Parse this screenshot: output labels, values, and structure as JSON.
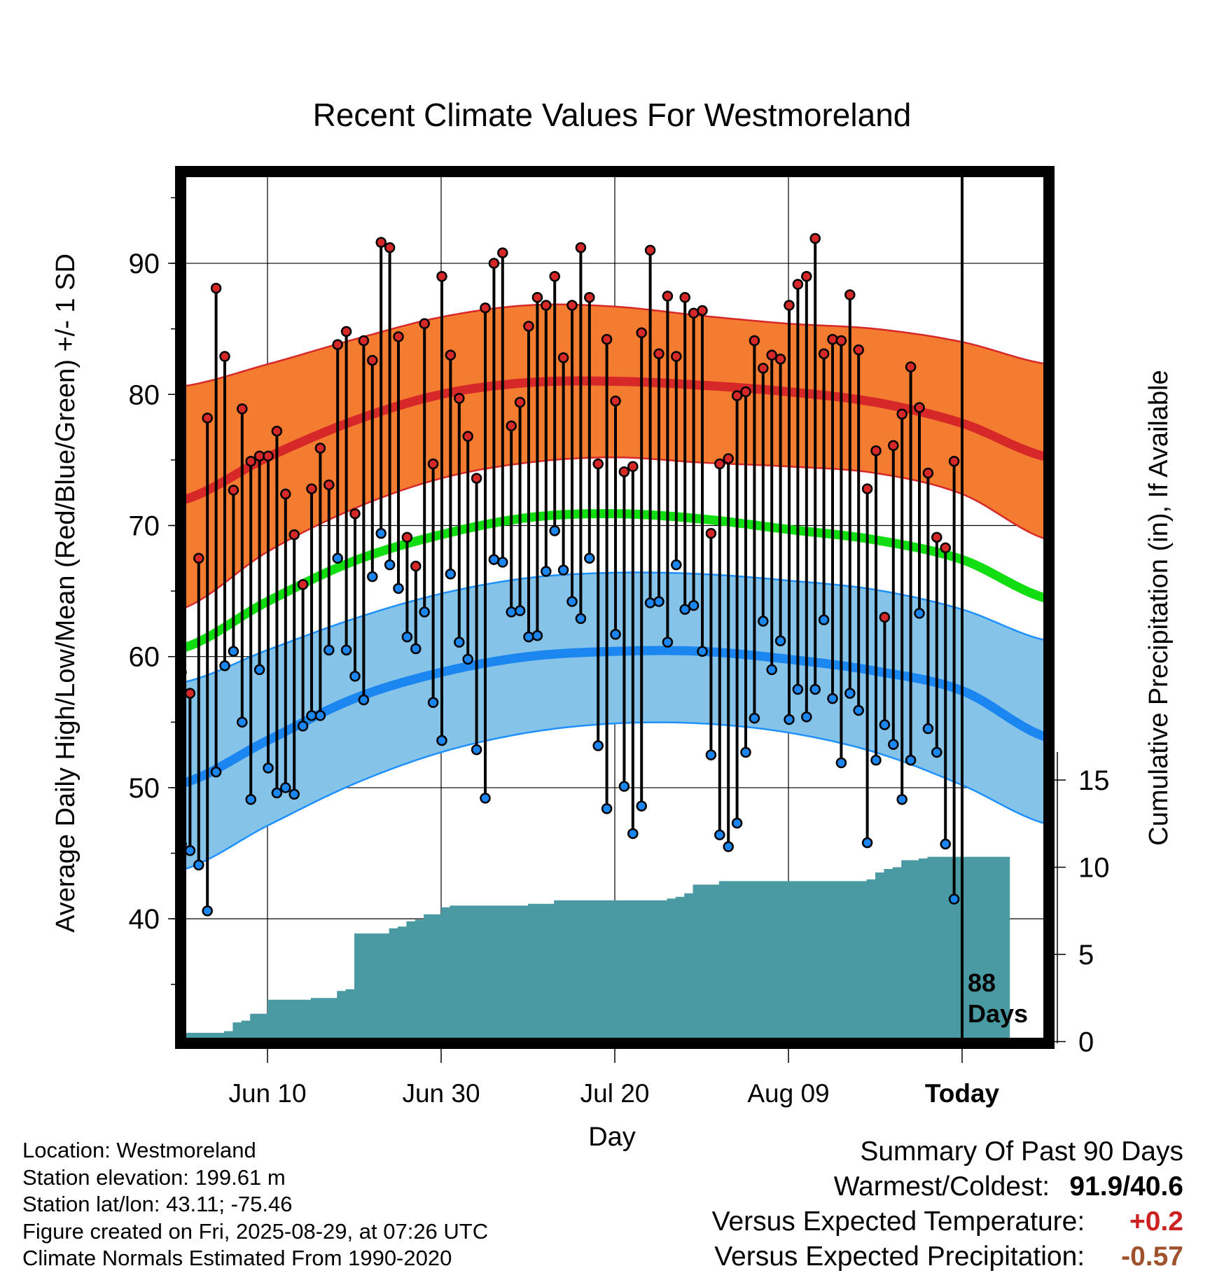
{
  "chart_data": {
    "type": "line",
    "title": "Recent Climate Values For Westmoreland",
    "xlabel": "Day",
    "ylabel": "Average Daily High/Low/Mean (Red/Blue/Green) +/- 1 SD",
    "y2label": "Cumulative Precipitation (in), If Available",
    "x_ticks": [
      "Jun 10",
      "Jun 30",
      "Jul 20",
      "Aug 09",
      "Today"
    ],
    "x_tick_days": [
      10,
      30,
      50,
      70,
      90
    ],
    "x_range": [
      0,
      100
    ],
    "y_ticks": [
      40,
      50,
      60,
      70,
      80,
      90
    ],
    "y_range": [
      30.5,
      97
    ],
    "y2_ticks": [
      0,
      5,
      10,
      15
    ],
    "y2_range": [
      0,
      50
    ],
    "today_marker": {
      "day": 90,
      "label_line1": "88",
      "label_line2": "Days"
    },
    "grid": true,
    "colors": {
      "high_band": "#f47c30",
      "high_edge": "#d62828",
      "high_mean": "#d62828",
      "low_band": "#85c3e8",
      "low_edge": "#1e90ff",
      "low_mean": "#1b85f0",
      "mean_line": "#11dd11",
      "precip": "#4a9aa3",
      "high_point": "#d62828",
      "low_point": "#1b85f0"
    },
    "normals": {
      "days": [
        0,
        10,
        20,
        30,
        40,
        50,
        60,
        70,
        80,
        90,
        100
      ],
      "high_upper": [
        80.6,
        82.3,
        84.2,
        85.9,
        86.8,
        86.7,
        86.0,
        85.4,
        85.0,
        84.0,
        82.3
      ],
      "high_mean": [
        71.9,
        75.2,
        78.0,
        80.0,
        80.9,
        81.0,
        80.7,
        80.2,
        79.4,
        77.8,
        75.2
      ],
      "high_lower": [
        63.6,
        68.0,
        71.3,
        73.6,
        74.8,
        75.2,
        74.8,
        74.5,
        74.0,
        72.4,
        68.9
      ],
      "mean": [
        60.6,
        64.2,
        67.3,
        69.3,
        70.6,
        70.9,
        70.5,
        69.7,
        68.9,
        67.4,
        64.4
      ],
      "low_upper": [
        58.0,
        60.5,
        62.9,
        64.8,
        66.0,
        66.4,
        66.3,
        65.8,
        65.1,
        63.6,
        61.2
      ],
      "low_mean": [
        50.3,
        53.6,
        56.8,
        58.8,
        60.0,
        60.4,
        60.4,
        59.8,
        58.9,
        57.4,
        53.8
      ],
      "low_lower": [
        43.7,
        47.1,
        50.3,
        52.7,
        54.2,
        54.9,
        54.9,
        54.2,
        52.7,
        50.2,
        47.2
      ]
    },
    "series": [
      {
        "name": "High",
        "values": [
          58.8,
          57.2,
          67.5,
          78.2,
          88.1,
          82.9,
          72.7,
          78.9,
          74.9,
          75.3,
          75.3,
          77.2,
          72.4,
          69.3,
          65.5,
          72.8,
          75.9,
          73.1,
          83.8,
          84.8,
          70.9,
          84.1,
          82.6,
          91.6,
          91.2,
          84.4,
          69.1,
          66.9,
          85.4,
          74.7,
          89.0,
          83.0,
          79.7,
          76.8,
          73.6,
          86.6,
          90.0,
          90.8,
          77.6,
          79.4,
          85.2,
          87.4,
          86.8,
          89.0,
          82.8,
          86.8,
          91.2,
          87.4,
          74.7,
          84.2,
          79.5,
          74.1,
          74.5,
          84.7,
          91.0,
          83.1,
          87.5,
          82.9,
          87.4,
          86.2,
          86.4,
          69.4,
          74.7,
          75.1,
          79.9,
          80.2,
          84.1,
          82.0,
          83.0,
          82.7,
          86.8,
          88.4,
          89.0,
          91.9,
          83.1,
          84.2,
          84.1,
          87.6,
          83.4,
          72.8,
          75.7,
          63.0,
          76.1,
          78.5,
          82.1,
          79.0,
          74.0,
          69.1,
          68.3,
          74.9
        ]
      },
      {
        "name": "Low",
        "values": [
          45.7,
          45.2,
          44.1,
          40.6,
          51.2,
          59.3,
          60.4,
          55.0,
          49.1,
          59.0,
          51.5,
          49.6,
          50.0,
          49.5,
          54.7,
          55.5,
          55.5,
          60.5,
          67.5,
          60.5,
          58.5,
          56.7,
          66.1,
          69.4,
          67.0,
          65.2,
          61.5,
          60.6,
          63.4,
          56.5,
          53.6,
          66.3,
          61.1,
          59.8,
          52.9,
          49.2,
          67.4,
          67.2,
          63.4,
          63.5,
          61.5,
          61.6,
          66.5,
          69.6,
          66.6,
          64.2,
          62.9,
          67.5,
          53.2,
          48.4,
          61.7,
          50.1,
          46.5,
          48.6,
          64.1,
          64.2,
          61.1,
          67.0,
          63.6,
          63.9,
          60.4,
          52.5,
          46.4,
          45.5,
          47.3,
          52.7,
          55.3,
          62.7,
          59.0,
          61.2,
          55.2,
          57.5,
          55.4,
          57.5,
          62.8,
          56.8,
          51.9,
          57.2,
          55.9,
          45.8,
          52.1,
          54.8,
          53.3,
          49.1,
          52.1,
          63.3,
          54.5,
          52.7,
          45.7,
          41.5
        ]
      }
    ],
    "precip_cumulative": {
      "days": [
        0,
        5,
        6,
        7,
        8,
        10,
        15,
        18,
        19,
        20,
        21,
        24,
        25,
        26,
        27,
        28,
        30,
        31,
        32,
        40,
        43,
        44,
        56,
        57,
        58,
        59,
        61,
        62,
        79,
        80,
        81,
        82,
        83,
        85,
        86,
        87,
        88,
        95.5
      ],
      "values": [
        0.5,
        0.6,
        1.1,
        1.2,
        1.6,
        2.4,
        2.5,
        2.9,
        3.0,
        6.2,
        6.2,
        6.5,
        6.6,
        6.9,
        7.0,
        7.3,
        7.7,
        7.8,
        7.8,
        7.9,
        8.1,
        8.1,
        8.2,
        8.3,
        8.5,
        9.0,
        9.0,
        9.2,
        9.3,
        9.7,
        9.9,
        10.0,
        10.4,
        10.5,
        10.6,
        10.6,
        10.6,
        10.6
      ]
    }
  },
  "footer": {
    "location": "Location: Westmoreland",
    "elevation": "Station elevation: 199.61 m",
    "latlon": "Station lat/lon: 43.11; -75.46",
    "created": "Figure created on Fri, 2025-08-29, at 07:26 UTC",
    "normals": "Climate Normals Estimated From 1990-2020"
  },
  "summary": {
    "heading": "Summary Of Past 90 Days",
    "warmest_coldest_label": "Warmest/Coldest:",
    "warmest_coldest_value": "91.9/40.6",
    "temp_label": "Versus Expected Temperature:",
    "temp_value": "+0.2",
    "precip_label": "Versus Expected Precipitation:",
    "precip_value": "-0.57"
  }
}
